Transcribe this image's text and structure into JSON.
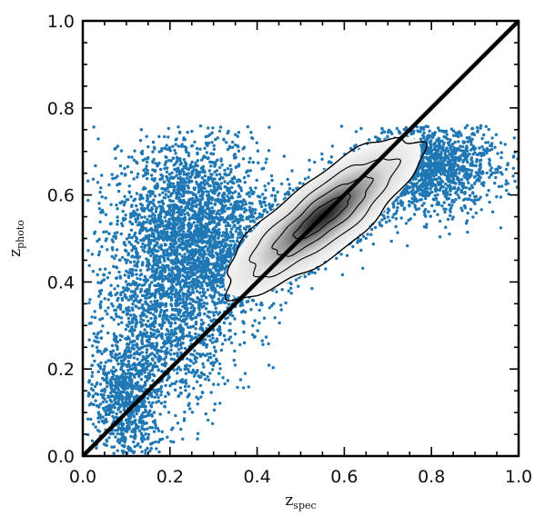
{
  "chart_data": {
    "type": "scatter",
    "title": "",
    "xlabel": {
      "base": "z",
      "sub": "spec"
    },
    "ylabel": {
      "base": "z",
      "sub": "photo"
    },
    "xlim": [
      0.0,
      1.0
    ],
    "ylim": [
      0.0,
      1.0
    ],
    "xticks": [
      0.0,
      0.2,
      0.4,
      0.6,
      0.8,
      1.0
    ],
    "yticks": [
      0.0,
      0.2,
      0.4,
      0.6,
      0.8,
      1.0
    ],
    "xtick_labels": [
      "0.0",
      "0.2",
      "0.4",
      "0.6",
      "0.8",
      "1.0"
    ],
    "ytick_labels": [
      "0.0",
      "0.2",
      "0.4",
      "0.6",
      "0.8",
      "1.0"
    ],
    "grid": false,
    "legend": "none",
    "series": [
      {
        "kind": "scatter",
        "color": "#1f77b4",
        "clusters": [
          {
            "cx": 0.25,
            "cy": 0.52,
            "sx": 0.09,
            "sy": 0.11,
            "weight": 0.3
          },
          {
            "cx": 0.55,
            "cy": 0.55,
            "sx": 0.1,
            "sy": 0.07,
            "weight": 0.35,
            "rho": 0.75
          },
          {
            "cx": 0.8,
            "cy": 0.66,
            "sx": 0.08,
            "sy": 0.05,
            "weight": 0.15
          },
          {
            "cx": 0.18,
            "cy": 0.28,
            "sx": 0.08,
            "sy": 0.1,
            "weight": 0.12
          },
          {
            "cx": 0.1,
            "cy": 0.12,
            "sx": 0.04,
            "sy": 0.07,
            "weight": 0.08
          }
        ],
        "y_max": 0.76
      },
      {
        "kind": "density",
        "color": "#000000",
        "center": [
          0.55,
          0.55
        ],
        "extent_x": [
          0.29,
          0.82
        ],
        "extent_y": [
          0.43,
          0.74
        ],
        "contour_levels": [
          1,
          2,
          3,
          4
        ]
      },
      {
        "kind": "line",
        "color": "#000000",
        "x": [
          0.0,
          1.0
        ],
        "y": [
          0.0,
          1.0
        ]
      }
    ]
  }
}
